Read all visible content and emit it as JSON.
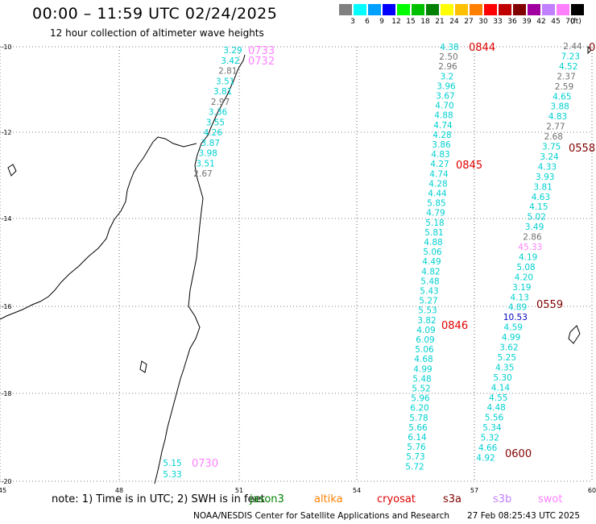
{
  "title": "00:00 – 11:59 UTC 02/24/2025",
  "subtitle": "12 hour collection of altimeter wave heights",
  "legend": {
    "unit": "(ft)",
    "items": [
      {
        "label": "3",
        "color": "#808080"
      },
      {
        "label": "6",
        "color": "#00ffff"
      },
      {
        "label": "9",
        "color": "#00a0ff"
      },
      {
        "label": "12",
        "color": "#0000ff"
      },
      {
        "label": "15",
        "color": "#00ff00"
      },
      {
        "label": "18",
        "color": "#00c000"
      },
      {
        "label": "21",
        "color": "#008000"
      },
      {
        "label": "24",
        "color": "#ffff00"
      },
      {
        "label": "27",
        "color": "#ffc000"
      },
      {
        "label": "30",
        "color": "#ff8000"
      },
      {
        "label": "33",
        "color": "#ff0000"
      },
      {
        "label": "36",
        "color": "#c00000"
      },
      {
        "label": "39",
        "color": "#800000"
      },
      {
        "label": "42",
        "color": "#a000a0"
      },
      {
        "label": "45",
        "color": "#c080ff"
      },
      {
        "label": "70",
        "color": "#ff80ff"
      },
      {
        "label": "",
        "color": "#000000"
      }
    ]
  },
  "axes": {
    "lon_labels": [
      "45",
      "48",
      "51",
      "54",
      "57",
      "60"
    ],
    "lat_labels": [
      "-10",
      "-12",
      "-14",
      "-16",
      "-18",
      "-20"
    ]
  },
  "tracks": [
    {
      "values": [
        {
          "v": "3.29",
          "c": "#00d0d0"
        },
        {
          "v": "3.42",
          "c": "#00d0d0"
        },
        {
          "v": "2.81",
          "c": "#707070"
        },
        {
          "v": "3.51",
          "c": "#00d0d0"
        },
        {
          "v": "3.81",
          "c": "#00d0d0"
        },
        {
          "v": "2.97",
          "c": "#707070"
        },
        {
          "v": "3.36",
          "c": "#00d0d0"
        },
        {
          "v": "3.55",
          "c": "#00d0d0"
        },
        {
          "v": "4.26",
          "c": "#00d0d0"
        },
        {
          "v": "3.87",
          "c": "#00d0d0"
        },
        {
          "v": "3.98",
          "c": "#00d0d0"
        },
        {
          "v": "3.51",
          "c": "#00d0d0"
        },
        {
          "v": "2.67",
          "c": "#707070"
        }
      ]
    },
    {
      "values": [
        {
          "v": "5.15",
          "c": "#00d0d0"
        },
        {
          "v": "5.33",
          "c": "#00d0d0"
        }
      ]
    },
    {
      "values": [
        {
          "v": "4.38",
          "c": "#00d0d0"
        },
        {
          "v": "2.50",
          "c": "#707070"
        },
        {
          "v": "2.96",
          "c": "#707070"
        },
        {
          "v": "3.2",
          "c": "#00d0d0"
        },
        {
          "v": "3.96",
          "c": "#00d0d0"
        },
        {
          "v": "3.67",
          "c": "#00d0d0"
        },
        {
          "v": "4.70",
          "c": "#00d0d0"
        },
        {
          "v": "4.88",
          "c": "#00d0d0"
        },
        {
          "v": "4.74",
          "c": "#00d0d0"
        },
        {
          "v": "4.28",
          "c": "#00d0d0"
        },
        {
          "v": "3.86",
          "c": "#00d0d0"
        },
        {
          "v": "4.83",
          "c": "#00d0d0"
        },
        {
          "v": "4.27",
          "c": "#00d0d0"
        },
        {
          "v": "4.74",
          "c": "#00d0d0"
        },
        {
          "v": "4.28",
          "c": "#00d0d0"
        },
        {
          "v": "4.44",
          "c": "#00d0d0"
        },
        {
          "v": "5.85",
          "c": "#00d0d0"
        },
        {
          "v": "4.79",
          "c": "#00d0d0"
        },
        {
          "v": "5.18",
          "c": "#00d0d0"
        },
        {
          "v": "5.81",
          "c": "#00d0d0"
        },
        {
          "v": "4.88",
          "c": "#00d0d0"
        },
        {
          "v": "5.06",
          "c": "#00d0d0"
        },
        {
          "v": "4.49",
          "c": "#00d0d0"
        },
        {
          "v": "4.82",
          "c": "#00d0d0"
        },
        {
          "v": "5.48",
          "c": "#00d0d0"
        },
        {
          "v": "5.43",
          "c": "#00d0d0"
        },
        {
          "v": "5.27",
          "c": "#00d0d0"
        },
        {
          "v": "5.53",
          "c": "#00d0d0"
        },
        {
          "v": "3.82",
          "c": "#00d0d0"
        },
        {
          "v": "4.09",
          "c": "#00d0d0"
        },
        {
          "v": "6.09",
          "c": "#00d0d0"
        },
        {
          "v": "5.06",
          "c": "#00d0d0"
        },
        {
          "v": "4.68",
          "c": "#00d0d0"
        },
        {
          "v": "4.99",
          "c": "#00d0d0"
        },
        {
          "v": "5.48",
          "c": "#00d0d0"
        },
        {
          "v": "5.52",
          "c": "#00d0d0"
        },
        {
          "v": "5.96",
          "c": "#00d0d0"
        },
        {
          "v": "6.20",
          "c": "#00d0d0"
        },
        {
          "v": "5.78",
          "c": "#00d0d0"
        },
        {
          "v": "5.66",
          "c": "#00d0d0"
        },
        {
          "v": "6.14",
          "c": "#00d0d0"
        },
        {
          "v": "5.76",
          "c": "#00d0d0"
        },
        {
          "v": "5.73",
          "c": "#00d0d0"
        },
        {
          "v": "5.72",
          "c": "#00d0d0"
        }
      ]
    },
    {
      "values": [
        {
          "v": "2.44",
          "c": "#707070"
        },
        {
          "v": "7.23",
          "c": "#00d0d0"
        },
        {
          "v": "4.52",
          "c": "#00d0d0"
        },
        {
          "v": "2.37",
          "c": "#707070"
        },
        {
          "v": "2.59",
          "c": "#707070"
        },
        {
          "v": "4.65",
          "c": "#00d0d0"
        },
        {
          "v": "3.88",
          "c": "#00d0d0"
        },
        {
          "v": "4.83",
          "c": "#00d0d0"
        },
        {
          "v": "2.77",
          "c": "#707070"
        },
        {
          "v": "2.68",
          "c": "#707070"
        },
        {
          "v": "3.75",
          "c": "#00d0d0"
        },
        {
          "v": "3.24",
          "c": "#00d0d0"
        },
        {
          "v": "4.33",
          "c": "#00d0d0"
        },
        {
          "v": "3.93",
          "c": "#00d0d0"
        },
        {
          "v": "3.81",
          "c": "#00d0d0"
        },
        {
          "v": "4.63",
          "c": "#00d0d0"
        },
        {
          "v": "4.15",
          "c": "#00d0d0"
        },
        {
          "v": "5.02",
          "c": "#00d0d0"
        },
        {
          "v": "3.49",
          "c": "#00d0d0"
        },
        {
          "v": "2.86",
          "c": "#707070"
        },
        {
          "v": "45.33",
          "c": "#ff80ff"
        },
        {
          "v": "4.19",
          "c": "#00d0d0"
        },
        {
          "v": "5.08",
          "c": "#00d0d0"
        },
        {
          "v": "4.20",
          "c": "#00d0d0"
        },
        {
          "v": "3.19",
          "c": "#00d0d0"
        },
        {
          "v": "4.13",
          "c": "#00d0d0"
        },
        {
          "v": "4.89",
          "c": "#00d0d0"
        },
        {
          "v": "10.53",
          "c": "#0000c0"
        },
        {
          "v": "4.59",
          "c": "#00d0d0"
        },
        {
          "v": "4.99",
          "c": "#00d0d0"
        },
        {
          "v": "3.62",
          "c": "#00d0d0"
        },
        {
          "v": "5.25",
          "c": "#00d0d0"
        },
        {
          "v": "4.35",
          "c": "#00d0d0"
        },
        {
          "v": "5.30",
          "c": "#00d0d0"
        },
        {
          "v": "4.14",
          "c": "#00d0d0"
        },
        {
          "v": "4.55",
          "c": "#00d0d0"
        },
        {
          "v": "4.48",
          "c": "#00d0d0"
        },
        {
          "v": "5.56",
          "c": "#00d0d0"
        },
        {
          "v": "5.34",
          "c": "#00d0d0"
        },
        {
          "v": "5.32",
          "c": "#00d0d0"
        },
        {
          "v": "4.66",
          "c": "#00d0d0"
        },
        {
          "v": "4.92",
          "c": "#00d0d0"
        }
      ]
    }
  ],
  "time_labels": [
    {
      "text": "0733",
      "c": "#ff80ff"
    },
    {
      "text": "0732",
      "c": "#ff80ff"
    },
    {
      "text": "0730",
      "c": "#ff80ff"
    },
    {
      "text": "0844",
      "c": "#e00000"
    },
    {
      "text": "0845",
      "c": "#e00000"
    },
    {
      "text": "0846",
      "c": "#e00000"
    },
    {
      "text": "0558",
      "c": "#800000"
    },
    {
      "text": "0559",
      "c": "#800000"
    },
    {
      "text": "0600",
      "c": "#800000"
    },
    {
      "text": "0",
      "c": "#800000"
    }
  ],
  "footer": {
    "note": "note: 1) Time is in UTC; 2) SWH is in feet",
    "satellites": [
      {
        "name": "jason3",
        "color": "#008000"
      },
      {
        "name": "altika",
        "color": "#ff8000"
      },
      {
        "name": "cryosat",
        "color": "#e00000"
      },
      {
        "name": "s3a",
        "color": "#800000"
      },
      {
        "name": "s3b",
        "color": "#c080ff"
      },
      {
        "name": "swot",
        "color": "#ff80ff"
      }
    ],
    "credit": "NOAA/NESDIS Center for Satellite Applications and Research",
    "timestamp": "27 Feb 08:25:43 UTC 2025"
  }
}
